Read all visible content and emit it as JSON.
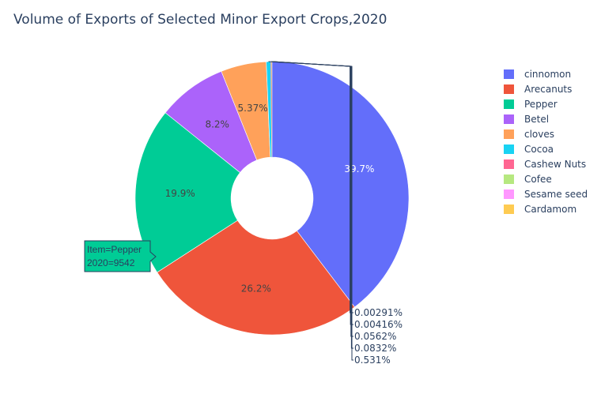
{
  "chart_data": {
    "type": "pie",
    "title": "Volume of Exports of Selected Minor Export Crops,2020",
    "hole": 0.3,
    "legend_position": "right",
    "slices": [
      {
        "label": "cinnomon",
        "percent": 39.7,
        "percent_text": "39.7%",
        "color": "#636efa"
      },
      {
        "label": "Arecanuts",
        "percent": 26.2,
        "percent_text": "26.2%",
        "color": "#ef553b"
      },
      {
        "label": "Pepper",
        "percent": 19.9,
        "percent_text": "19.9%",
        "color": "#00cc96"
      },
      {
        "label": "Betel",
        "percent": 8.2,
        "percent_text": "8.2%",
        "color": "#ab63fa"
      },
      {
        "label": "cloves",
        "percent": 5.37,
        "percent_text": "5.37%",
        "color": "#ffa15a"
      },
      {
        "label": "Cocoa",
        "percent": 0.531,
        "percent_text": "0.531%",
        "color": "#19d3f3"
      },
      {
        "label": "Cashew Nuts",
        "percent": 0.0832,
        "percent_text": "0.0832%",
        "color": "#ff6692"
      },
      {
        "label": "Cofee",
        "percent": 0.0562,
        "percent_text": "0.0562%",
        "color": "#b6e880"
      },
      {
        "label": "Sesame seed",
        "percent": 0.00416,
        "percent_text": "0.00416%",
        "color": "#ff97ff"
      },
      {
        "label": "Cardamom",
        "percent": 0.00291,
        "percent_text": "0.00291%",
        "color": "#fecb52"
      }
    ],
    "hover": {
      "line1": "Item=Pepper",
      "line2": "2020=9542",
      "color": "#00cc96"
    }
  }
}
